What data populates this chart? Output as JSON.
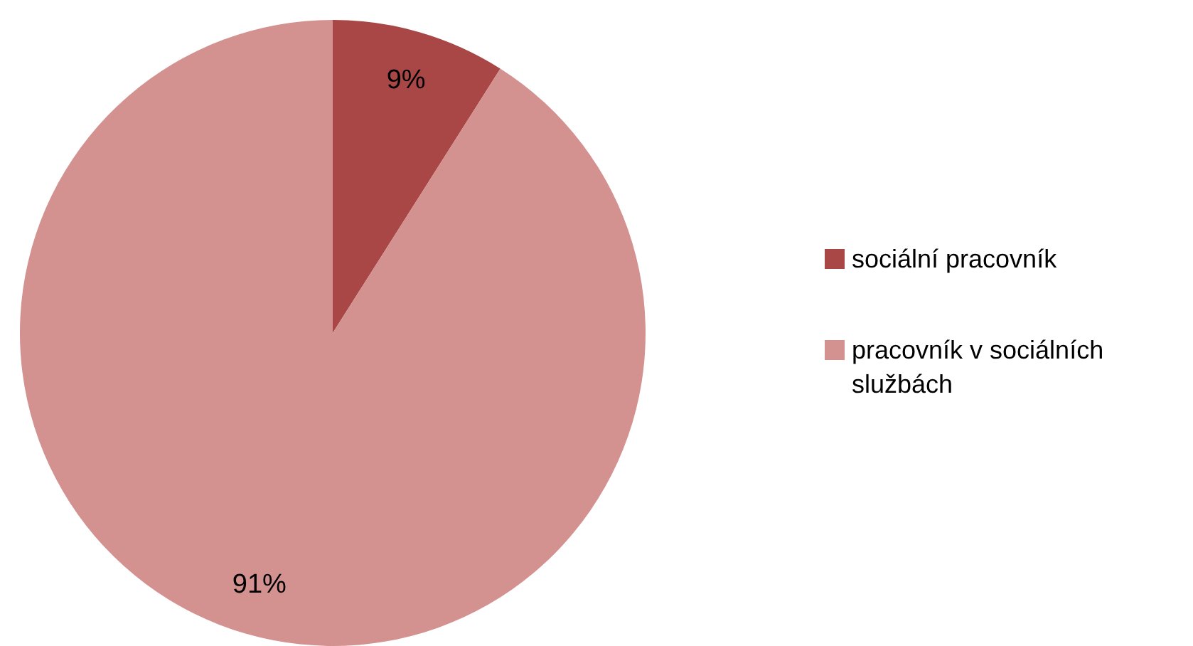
{
  "chart_data": {
    "type": "pie",
    "categories": [
      "sociální pracovník",
      "pracovník v sociálních službách"
    ],
    "values": [
      9,
      91
    ],
    "colors": [
      "#a84745",
      "#d39190"
    ],
    "value_labels": [
      "9%",
      "91%"
    ],
    "legend": "right"
  }
}
